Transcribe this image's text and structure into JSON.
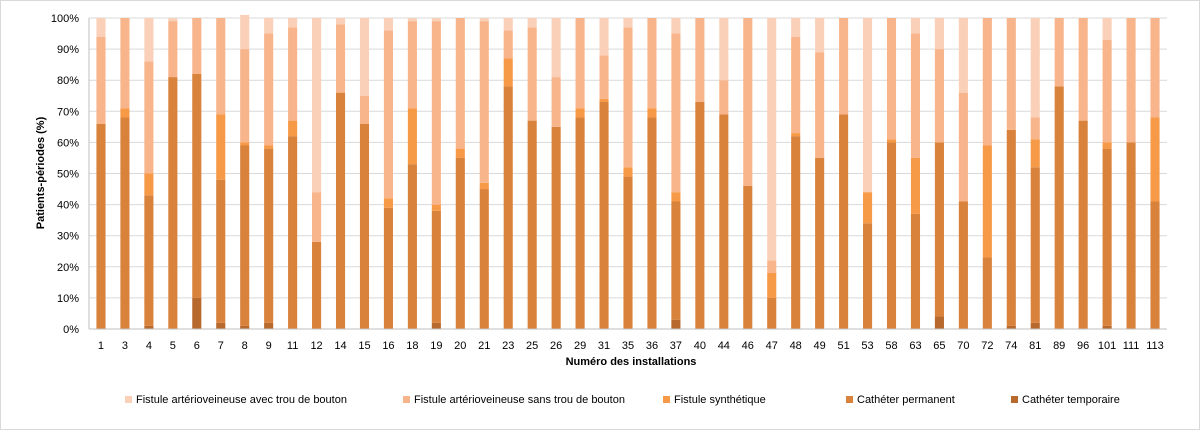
{
  "chart_data": {
    "type": "bar",
    "stacked": true,
    "xlabel": "Numéro des installations",
    "ylabel": "Patients-périodes (%)",
    "ylim": [
      0,
      100
    ],
    "yticks": [
      "0%",
      "10%",
      "20%",
      "30%",
      "40%",
      "50%",
      "60%",
      "70%",
      "80%",
      "90%",
      "100%"
    ],
    "grid": "horizontal",
    "legend_position": "bottom",
    "categories": [
      "1",
      "3",
      "4",
      "5",
      "6",
      "7",
      "8",
      "9",
      "11",
      "12",
      "14",
      "15",
      "16",
      "18",
      "19",
      "20",
      "21",
      "23",
      "25",
      "26",
      "29",
      "31",
      "35",
      "36",
      "37",
      "40",
      "44",
      "46",
      "47",
      "48",
      "49",
      "51",
      "53",
      "58",
      "63",
      "65",
      "70",
      "72",
      "74",
      "81",
      "89",
      "96",
      "101",
      "111",
      "113"
    ],
    "series": [
      {
        "name": "Cathéter temporaire",
        "color": "#b8692d",
        "values": [
          0,
          0,
          1,
          0,
          10,
          2,
          1,
          2,
          0,
          0,
          0,
          0,
          0,
          0,
          2,
          0,
          0,
          0,
          0,
          0,
          0,
          0,
          0,
          0,
          3,
          0,
          0,
          0,
          0,
          0,
          0,
          0,
          0,
          0,
          0,
          4,
          0,
          0,
          1,
          2,
          0,
          0,
          1,
          0,
          0
        ]
      },
      {
        "name": "Cathéter permanent",
        "color": "#d9823b",
        "values": [
          66,
          68,
          42,
          81,
          72,
          46,
          58,
          56,
          62,
          28,
          76,
          66,
          39,
          53,
          36,
          55,
          45,
          78,
          67,
          65,
          68,
          73,
          49,
          68,
          38,
          73,
          69,
          46,
          10,
          62,
          55,
          69,
          34,
          60,
          37,
          56,
          41,
          23,
          63,
          50,
          78,
          67,
          57,
          60,
          41
        ]
      },
      {
        "name": "Fistule synthétique",
        "color": "#f79a47",
        "values": [
          0,
          3,
          7,
          0,
          0,
          21,
          1,
          1,
          5,
          0,
          0,
          0,
          3,
          18,
          2,
          3,
          2,
          9,
          0,
          0,
          3,
          1,
          3,
          3,
          3,
          0,
          0,
          0,
          8,
          1,
          0,
          0,
          10,
          1,
          18,
          0,
          0,
          36,
          0,
          9,
          0,
          0,
          2,
          0,
          27
        ]
      },
      {
        "name": "Fistule artérioveineuse sans trou de bouton",
        "color": "#f8b58b",
        "values": [
          28,
          29,
          36,
          18,
          18,
          31,
          30,
          36,
          30,
          16,
          22,
          9,
          54,
          28,
          59,
          42,
          52,
          9,
          30,
          16,
          29,
          14,
          45,
          29,
          51,
          27,
          11,
          54,
          4,
          31,
          34,
          31,
          0,
          39,
          40,
          30,
          35,
          41,
          36,
          7,
          22,
          33,
          33,
          40,
          32
        ]
      },
      {
        "name": "Fistule artérioveineuse avec trou de bouton",
        "color": "#fad0b8",
        "values": [
          6,
          0,
          14,
          1,
          0,
          0,
          11,
          5,
          3,
          56,
          2,
          25,
          4,
          1,
          1,
          0,
          1,
          4,
          3,
          19,
          0,
          12,
          3,
          0,
          5,
          0,
          20,
          0,
          78,
          6,
          11,
          0,
          56,
          0,
          5,
          10,
          24,
          0,
          0,
          32,
          0,
          0,
          7,
          0,
          0
        ]
      }
    ],
    "legend_order": [
      "Fistule artérioveineuse avec trou de bouton",
      "Fistule artérioveineuse sans trou de bouton",
      "Fistule synthétique",
      "Cathéter permanent",
      "Cathéter temporaire"
    ]
  }
}
